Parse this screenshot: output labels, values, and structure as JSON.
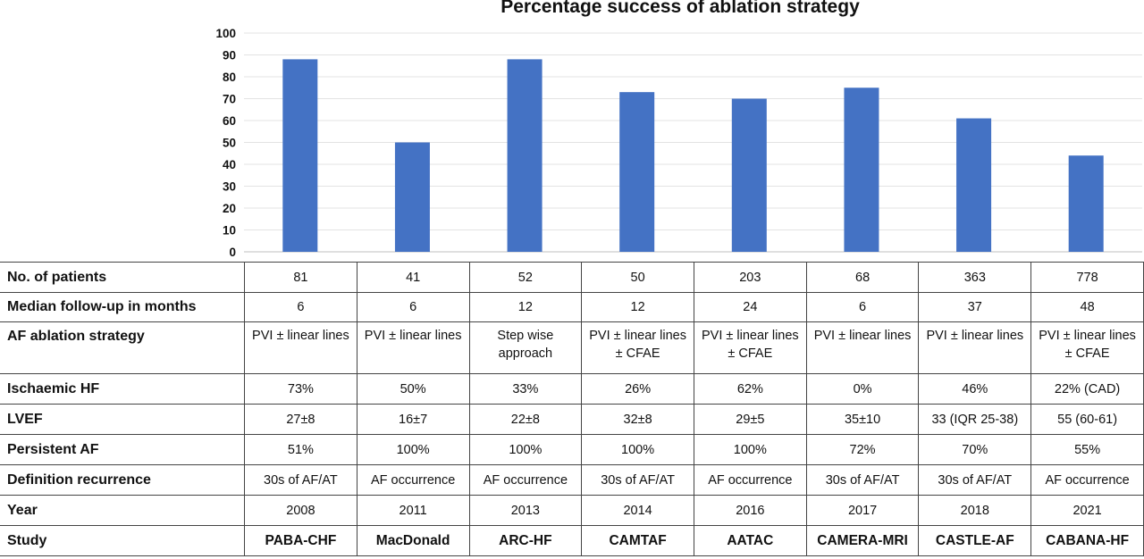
{
  "chart_data": {
    "type": "bar",
    "title": "Percentage success of ablation strategy",
    "categories": [
      "PABA-CHF",
      "MacDonald",
      "ARC-HF",
      "CAMTAF",
      "AATAC",
      "CAMERA-MRI",
      "CASTLE-AF",
      "CABANA-HF"
    ],
    "values": [
      88,
      50,
      88,
      73,
      70,
      75,
      61,
      44
    ],
    "ylim": [
      0,
      100
    ],
    "yticks": [
      "0",
      "10",
      "20",
      "30",
      "40",
      "50",
      "60",
      "70",
      "80",
      "90",
      "100"
    ],
    "bar_color": "#4472C4",
    "grid": true
  },
  "table": {
    "rows": [
      {
        "label": "No. of patients",
        "values": [
          "81",
          "41",
          "52",
          "50",
          "203",
          "68",
          "363",
          "778"
        ]
      },
      {
        "label": "Median follow-up in months",
        "values": [
          "6",
          "6",
          "12",
          "12",
          "24",
          "6",
          "37",
          "48"
        ]
      },
      {
        "label": "AF ablation strategy",
        "values": [
          "PVI ± linear lines",
          "PVI ± linear lines",
          "Step wise approach",
          "PVI ± linear lines ± CFAE",
          "PVI ± linear lines ± CFAE",
          "PVI ± linear lines",
          "PVI ± linear lines",
          "PVI ± linear lines ± CFAE"
        ]
      },
      {
        "label": "Ischaemic HF",
        "values": [
          "73%",
          "50%",
          "33%",
          "26%",
          "62%",
          "0%",
          "46%",
          "22% (CAD)"
        ]
      },
      {
        "label": "LVEF",
        "values": [
          "27±8",
          "16±7",
          "22±8",
          "32±8",
          "29±5",
          "35±10",
          "33 (IQR 25-38)",
          "55 (60-61)"
        ]
      },
      {
        "label": "Persistent AF",
        "values": [
          "51%",
          "100%",
          "100%",
          "100%",
          "100%",
          "72%",
          "70%",
          "55%"
        ]
      },
      {
        "label": "Definition recurrence",
        "values": [
          "30s of AF/AT",
          "AF occurrence",
          "AF occurrence",
          "30s of AF/AT",
          "AF occurrence",
          "30s of AF/AT",
          "30s of AF/AT",
          "AF occurrence"
        ]
      },
      {
        "label": "Year",
        "values": [
          "2008",
          "2011",
          "2013",
          "2014",
          "2016",
          "2017",
          "2018",
          "2021"
        ]
      },
      {
        "label": "Study",
        "values": [
          "PABA-CHF",
          "MacDonald",
          "ARC-HF",
          "CAMTAF",
          "AATAC",
          "CAMERA-MRI",
          "CASTLE-AF",
          "CABANA-HF"
        ]
      }
    ]
  }
}
